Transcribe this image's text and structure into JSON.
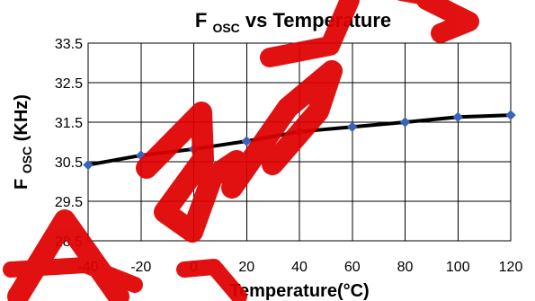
{
  "colors": {
    "background": "#ffffff",
    "text": "#000000",
    "grid": "#000000",
    "series_line": "#000000",
    "marker": "#3b63b8",
    "watermark": "#e00000"
  },
  "watermark": {
    "icon": "red-watermark-graphic"
  },
  "chart_data": {
    "type": "line",
    "title": "Fosc vs Temperature",
    "title_parts": {
      "prefix": "F",
      "subscript": "OSC",
      "suffix": " vs Temperature"
    },
    "xlabel": "Temperature(°C)",
    "ylabel": "Fosc(KHz)",
    "ylabel_parts": {
      "prefix": "F",
      "subscript": "OSC",
      "suffix": "(KHz)"
    },
    "x": [
      -40,
      -20,
      0,
      20,
      40,
      60,
      80,
      100,
      120
    ],
    "series": [
      {
        "values": [
          30.42,
          30.66,
          30.82,
          31.02,
          31.26,
          31.38,
          31.5,
          31.63,
          31.68
        ]
      }
    ],
    "xlim": [
      -40,
      120
    ],
    "ylim": [
      28.5,
      33.5
    ],
    "xticks": [
      -40,
      -20,
      0,
      20,
      40,
      60,
      80,
      100,
      120
    ],
    "yticks": [
      33.5,
      32.5,
      31.5,
      30.5,
      29.5,
      28.5
    ],
    "xtick_labels": [
      "-40",
      "-20",
      "0",
      "20",
      "40",
      "60",
      "80",
      "100",
      "120"
    ],
    "ytick_labels": [
      "33.5",
      "32.5",
      "31.5",
      "30.5",
      "29.5",
      "28.5"
    ],
    "grid": true,
    "legend": "none",
    "marker_shape": "diamond"
  }
}
